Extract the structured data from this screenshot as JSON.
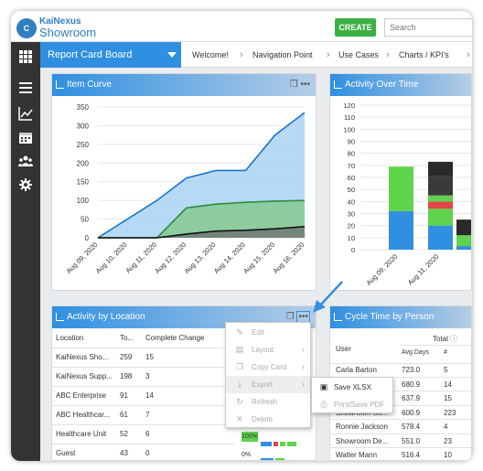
{
  "app": {
    "logo_text_top": "KaiNexus",
    "logo_text_bottom": "Showroom",
    "logo_badge": "C"
  },
  "header": {
    "create_label": "CREATE",
    "search_placeholder": "Search"
  },
  "sidebar_icons": [
    "grid-icon",
    "list-icon",
    "chart-icon",
    "calendar-icon",
    "people-icon",
    "gear-icon"
  ],
  "board_selector": "Report Card Board",
  "tabs": [
    "Welcome!",
    "Navigation Point",
    "Use Cases",
    "Charts / KPI's"
  ],
  "item_curve": {
    "title": "Item Curve",
    "chart_data": {
      "type": "area",
      "x": [
        "Aug 09, 2020",
        "Aug 10, 2020",
        "Aug 11, 2020",
        "Aug 12, 2020",
        "Aug 13, 2020",
        "Aug 14, 2020",
        "Aug 15, 2020",
        "Aug 16, 2020"
      ],
      "ylim": [
        0,
        350
      ],
      "yticks": [
        0,
        50,
        100,
        150,
        200,
        250,
        300,
        350
      ],
      "series": [
        {
          "color": "#1a73c8",
          "fill": "#a9d4f5",
          "values": [
            0,
            50,
            100,
            160,
            180,
            180,
            275,
            335
          ]
        },
        {
          "color": "#2e8b3e",
          "fill": "#86c98e",
          "values": [
            0,
            0,
            0,
            80,
            90,
            95,
            98,
            100
          ]
        },
        {
          "color": "#111111",
          "fill": "#6f7a72",
          "values": [
            0,
            0,
            0,
            10,
            18,
            20,
            24,
            30
          ]
        }
      ]
    }
  },
  "activity_over_time": {
    "title": "Activity Over Time",
    "chart_data": {
      "type": "bar",
      "ylim": [
        0,
        120
      ],
      "yticks": [
        0,
        10,
        20,
        30,
        40,
        50,
        60,
        70,
        80,
        90,
        100,
        110,
        120
      ],
      "x_labels": [
        "Aug 09, 2020",
        "Aug 11, 2020"
      ],
      "bars": [
        {
          "segments": [
            {
              "value": 32,
              "color": "#2f8fe0"
            },
            {
              "value": 37,
              "color": "#5ed34b"
            }
          ]
        },
        {
          "segments": [
            {
              "value": 20,
              "color": "#2f8fe0"
            },
            {
              "value": 14,
              "color": "#5ed34b"
            },
            {
              "value": 6,
              "color": "#e04848"
            },
            {
              "value": 5,
              "color": "#5ed34b"
            },
            {
              "value": 16,
              "color": "#3a3a3a"
            },
            {
              "value": 12,
              "color": "#2a2a2a"
            }
          ]
        },
        {
          "segments": [
            {
              "value": 3,
              "color": "#2f8fe0"
            },
            {
              "value": 9,
              "color": "#5ed34b"
            },
            {
              "value": 13,
              "color": "#2a2a2a"
            }
          ]
        }
      ]
    }
  },
  "activity_by_location": {
    "title": "Activity by Location",
    "headers": [
      "Location",
      "To...",
      "Complete Change"
    ],
    "rows": [
      [
        "KaiNexus Sho...",
        "259",
        "15"
      ],
      [
        "KaiNexus Supp...",
        "198",
        "3"
      ],
      [
        "ABC Enterprise",
        "91",
        "14"
      ],
      [
        "ABC Healthcar...",
        "61",
        "7"
      ],
      [
        "Healthcare Unit",
        "52",
        "6"
      ],
      [
        "Guest",
        "43",
        "0"
      ]
    ],
    "pct": [
      "100%",
      "0%"
    ]
  },
  "context_menu": {
    "items": [
      {
        "label": "Edit",
        "icon": "pencil-icon",
        "glyph": "✎",
        "submenu": false
      },
      {
        "label": "Layout",
        "icon": "layout-icon",
        "glyph": "▤",
        "submenu": true
      },
      {
        "label": "Copy Card",
        "icon": "copy-icon",
        "glyph": "❐",
        "submenu": true
      },
      {
        "label": "Export",
        "icon": "download-icon",
        "glyph": "⤓",
        "submenu": true
      },
      {
        "label": "Refresh",
        "icon": "refresh-icon",
        "glyph": "↻",
        "submenu": false
      },
      {
        "label": "Delete",
        "icon": "delete-icon",
        "glyph": "✕",
        "submenu": false
      }
    ],
    "export_sub": [
      {
        "label": "Save XLSX",
        "icon": "excel-icon"
      },
      {
        "label": "Print/Save PDF",
        "icon": "print-icon"
      }
    ]
  },
  "cycle_time": {
    "title": "Cycle Time by Person",
    "col_user": "User",
    "col_total": "Total",
    "sub_headers": [
      "Avg Days",
      "#"
    ],
    "rows": [
      [
        "Carla Barton",
        "723.0",
        "5"
      ],
      [
        "Showroom Re...",
        "680.9",
        "14"
      ],
      [
        "Showroom ...",
        "637.9",
        "15"
      ],
      [
        "Showroom Su...",
        "600.9",
        "223"
      ],
      [
        "Ronnie Jackson",
        "578.4",
        "4"
      ],
      [
        "Showroom De...",
        "551.0",
        "23"
      ],
      [
        "Walter Mann",
        "516.4",
        "10"
      ]
    ]
  }
}
